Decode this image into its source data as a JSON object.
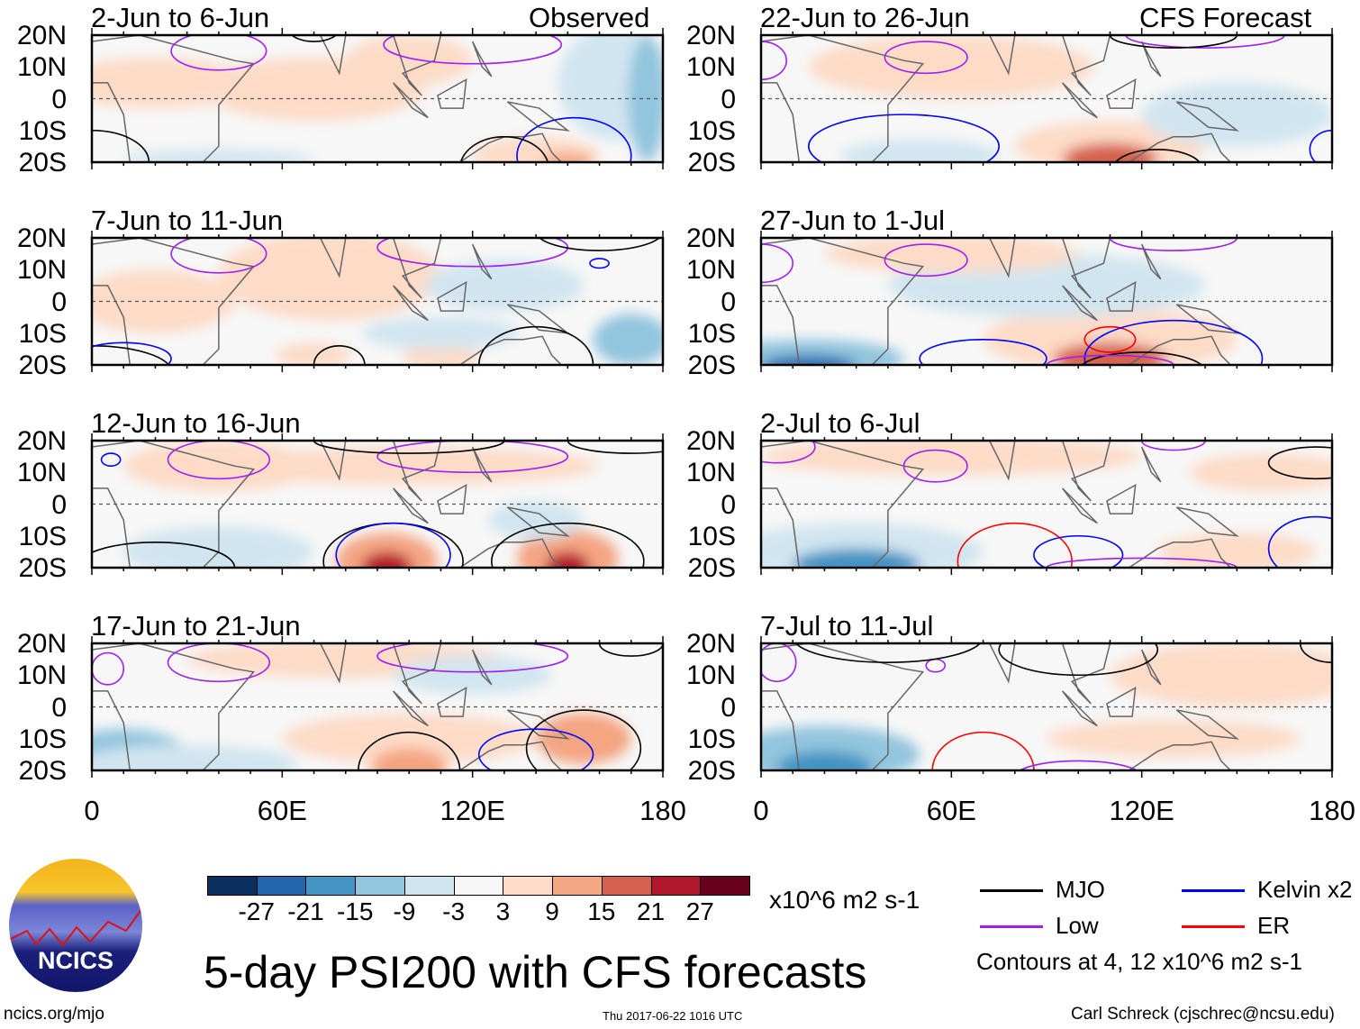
{
  "header": {
    "observed_label": "Observed",
    "forecast_label": "CFS Forecast"
  },
  "chart_data": {
    "type": "heatmap",
    "title": "5-day PSI200 with CFS forecasts",
    "units": "x10^6 m2 s-1",
    "contour_note": "Contours at 4, 12 x10^6 m2 s-1",
    "lat_ticks": [
      "20N",
      "10N",
      "0",
      "10S",
      "20S"
    ],
    "lon_ticks": [
      "0",
      "60E",
      "120E",
      "180"
    ],
    "xlim": [
      0,
      180
    ],
    "ylim": [
      -20,
      20
    ],
    "colorbar": {
      "levels": [
        "-27",
        "-21",
        "-15",
        "-9",
        "-3",
        "3",
        "9",
        "15",
        "21",
        "27"
      ],
      "colors": [
        "#0b2f5f",
        "#2166ac",
        "#4393c3",
        "#92c5de",
        "#d1e5f0",
        "#f7f7f7",
        "#fddbc7",
        "#f4a582",
        "#d6604d",
        "#b2182b",
        "#67001f"
      ]
    },
    "legend": [
      {
        "name": "MJO",
        "color": "#000000"
      },
      {
        "name": "Kelvin x2",
        "color": "#0000ff"
      },
      {
        "name": "Low",
        "color": "#a020f0"
      },
      {
        "name": "ER",
        "color": "#ff0000"
      }
    ],
    "panels": [
      {
        "title": "2-Jun to 6-Jun",
        "group": "observed",
        "anomalies": [
          [
            20,
            5,
            30,
            8,
            5
          ],
          [
            70,
            3,
            35,
            10,
            5
          ],
          [
            100,
            12,
            20,
            8,
            5
          ],
          [
            140,
            -18,
            20,
            6,
            6
          ],
          [
            150,
            -20,
            8,
            3,
            12
          ],
          [
            165,
            5,
            18,
            18,
            -6
          ],
          [
            175,
            0,
            6,
            20,
            -12
          ],
          [
            40,
            -19,
            30,
            3,
            -5
          ]
        ],
        "contours": [
          [
            "low",
            40,
            15,
            15,
            6
          ],
          [
            "low",
            120,
            17,
            28,
            6
          ],
          [
            "kelvin",
            152,
            -18,
            18,
            12
          ],
          [
            "mjo",
            130,
            -22,
            14,
            10
          ],
          [
            "mjo",
            0,
            -20,
            18,
            10
          ],
          [
            "mjo",
            70,
            22,
            8,
            4
          ]
        ]
      },
      {
        "title": "7-Jun to 11-Jun",
        "group": "observed",
        "anomalies": [
          [
            75,
            8,
            35,
            14,
            5
          ],
          [
            20,
            0,
            25,
            10,
            4
          ],
          [
            110,
            -17,
            12,
            5,
            8
          ],
          [
            70,
            -17,
            12,
            4,
            8
          ],
          [
            130,
            5,
            25,
            8,
            -4
          ],
          [
            170,
            -12,
            12,
            8,
            -12
          ],
          [
            110,
            -10,
            25,
            5,
            -4
          ]
        ],
        "contours": [
          [
            "low",
            40,
            15,
            15,
            6
          ],
          [
            "low",
            120,
            17,
            30,
            6
          ],
          [
            "mjo",
            140,
            -20,
            18,
            12
          ],
          [
            "mjo",
            78,
            -20,
            8,
            6
          ],
          [
            "mjo",
            0,
            -22,
            25,
            8
          ],
          [
            "mjo",
            160,
            22,
            20,
            6
          ],
          [
            "kelvin",
            10,
            -18,
            15,
            5
          ],
          [
            "kelvin",
            160,
            12,
            3,
            1.5
          ]
        ]
      },
      {
        "title": "12-Jun to 16-Jun",
        "group": "observed",
        "anomalies": [
          [
            40,
            12,
            30,
            8,
            5
          ],
          [
            100,
            12,
            60,
            6,
            4
          ],
          [
            93,
            -18,
            16,
            9,
            12
          ],
          [
            93,
            -20,
            8,
            5,
            24
          ],
          [
            150,
            -17,
            16,
            9,
            12
          ],
          [
            150,
            -20,
            7,
            5,
            24
          ],
          [
            40,
            -15,
            30,
            8,
            -5
          ],
          [
            140,
            -5,
            15,
            6,
            -4
          ]
        ],
        "contours": [
          [
            "low",
            40,
            14,
            16,
            6
          ],
          [
            "low",
            120,
            15,
            30,
            5
          ],
          [
            "mjo",
            95,
            -18,
            22,
            12
          ],
          [
            "mjo",
            150,
            -18,
            24,
            12
          ],
          [
            "mjo",
            100,
            20,
            30,
            4
          ],
          [
            "mjo",
            170,
            20,
            20,
            4
          ],
          [
            "mjo",
            20,
            -20,
            25,
            8
          ],
          [
            "kelvin",
            95,
            -16,
            18,
            10
          ],
          [
            "kelvin",
            6,
            14,
            3,
            2
          ]
        ]
      },
      {
        "title": "17-Jun to 21-Jun",
        "group": "observed",
        "anomalies": [
          [
            80,
            15,
            50,
            6,
            5
          ],
          [
            100,
            -10,
            40,
            8,
            5
          ],
          [
            100,
            -19,
            12,
            6,
            14
          ],
          [
            155,
            -10,
            15,
            8,
            10
          ],
          [
            10,
            -15,
            20,
            8,
            -10
          ],
          [
            30,
            -18,
            35,
            6,
            -5
          ],
          [
            120,
            10,
            25,
            6,
            -4
          ]
        ],
        "contours": [
          [
            "low",
            40,
            14,
            16,
            6
          ],
          [
            "low",
            120,
            16,
            30,
            5
          ],
          [
            "mjo",
            100,
            -20,
            16,
            12
          ],
          [
            "mjo",
            155,
            -13,
            18,
            12
          ],
          [
            "mjo",
            170,
            20,
            10,
            4
          ],
          [
            "kelvin",
            140,
            -15,
            18,
            8
          ],
          [
            "low",
            5,
            12,
            5,
            5
          ]
        ]
      },
      {
        "title": "22-Jun to 26-Jun",
        "group": "forecast",
        "anomalies": [
          [
            60,
            10,
            45,
            10,
            5
          ],
          [
            110,
            -15,
            30,
            8,
            8
          ],
          [
            110,
            -19,
            15,
            5,
            16
          ],
          [
            150,
            -5,
            30,
            10,
            -5
          ],
          [
            50,
            -18,
            25,
            5,
            -4
          ]
        ],
        "contours": [
          [
            "low",
            52,
            13,
            13,
            5
          ],
          [
            "low",
            0,
            12,
            8,
            6
          ],
          [
            "low",
            140,
            20,
            25,
            4
          ],
          [
            "mjo",
            125,
            -22,
            14,
            6
          ],
          [
            "mjo",
            130,
            20,
            20,
            4
          ],
          [
            "kelvin",
            45,
            -15,
            30,
            10
          ],
          [
            "kelvin",
            180,
            -16,
            7,
            6
          ]
        ]
      },
      {
        "title": "27-Jun to 1-Jul",
        "group": "forecast",
        "anomalies": [
          [
            110,
            -12,
            40,
            10,
            8
          ],
          [
            110,
            -18,
            18,
            5,
            16
          ],
          [
            15,
            -18,
            30,
            6,
            -12
          ],
          [
            15,
            -20,
            15,
            3,
            -24
          ],
          [
            90,
            5,
            50,
            10,
            -4
          ],
          [
            60,
            15,
            40,
            6,
            5
          ]
        ],
        "contours": [
          [
            "low",
            52,
            13,
            13,
            5
          ],
          [
            "low",
            0,
            12,
            10,
            6
          ],
          [
            "low",
            130,
            20,
            20,
            4
          ],
          [
            "er",
            110,
            -12,
            8,
            4
          ],
          [
            "kelvin",
            70,
            -18,
            20,
            6
          ],
          [
            "kelvin",
            130,
            -18,
            28,
            12
          ],
          [
            "mjo",
            120,
            -22,
            20,
            6
          ],
          [
            "low",
            110,
            -20,
            20,
            3
          ]
        ]
      },
      {
        "title": "2-Jul to 6-Jul",
        "group": "forecast",
        "anomalies": [
          [
            60,
            15,
            60,
            6,
            5
          ],
          [
            30,
            -15,
            40,
            9,
            -8
          ],
          [
            30,
            -19,
            20,
            5,
            -16
          ],
          [
            160,
            10,
            25,
            6,
            4
          ],
          [
            150,
            -15,
            25,
            6,
            4
          ]
        ],
        "contours": [
          [
            "low",
            55,
            12,
            10,
            5
          ],
          [
            "low",
            5,
            18,
            12,
            5
          ],
          [
            "low",
            130,
            20,
            10,
            3
          ],
          [
            "mjo",
            175,
            13,
            15,
            5
          ],
          [
            "er",
            80,
            -18,
            18,
            12
          ],
          [
            "kelvin",
            100,
            -16,
            14,
            6
          ],
          [
            "kelvin",
            175,
            -14,
            15,
            10
          ],
          [
            "low",
            120,
            -20,
            30,
            3
          ]
        ]
      },
      {
        "title": "7-Jul to 11-Jul",
        "group": "forecast",
        "anomalies": [
          [
            150,
            10,
            40,
            10,
            5
          ],
          [
            130,
            -10,
            40,
            6,
            4
          ],
          [
            20,
            -15,
            30,
            9,
            -10
          ],
          [
            20,
            -19,
            15,
            5,
            -20
          ],
          [
            60,
            15,
            40,
            6,
            3
          ]
        ],
        "contours": [
          [
            "low",
            55,
            13,
            3,
            2
          ],
          [
            "mjo",
            40,
            22,
            30,
            8
          ],
          [
            "mjo",
            100,
            18,
            25,
            8
          ],
          [
            "mjo",
            180,
            20,
            10,
            6
          ],
          [
            "er",
            70,
            -20,
            16,
            12
          ],
          [
            "low",
            100,
            -22,
            20,
            5
          ],
          [
            "low",
            5,
            14,
            6,
            6
          ]
        ]
      }
    ]
  },
  "footer": {
    "logo_text": "NCICS",
    "url": "ncics.org/mjo",
    "timestamp": "Thu 2017-06-22 1016 UTC",
    "author": "Carl Schreck (cjschrec@ncsu.edu)"
  }
}
